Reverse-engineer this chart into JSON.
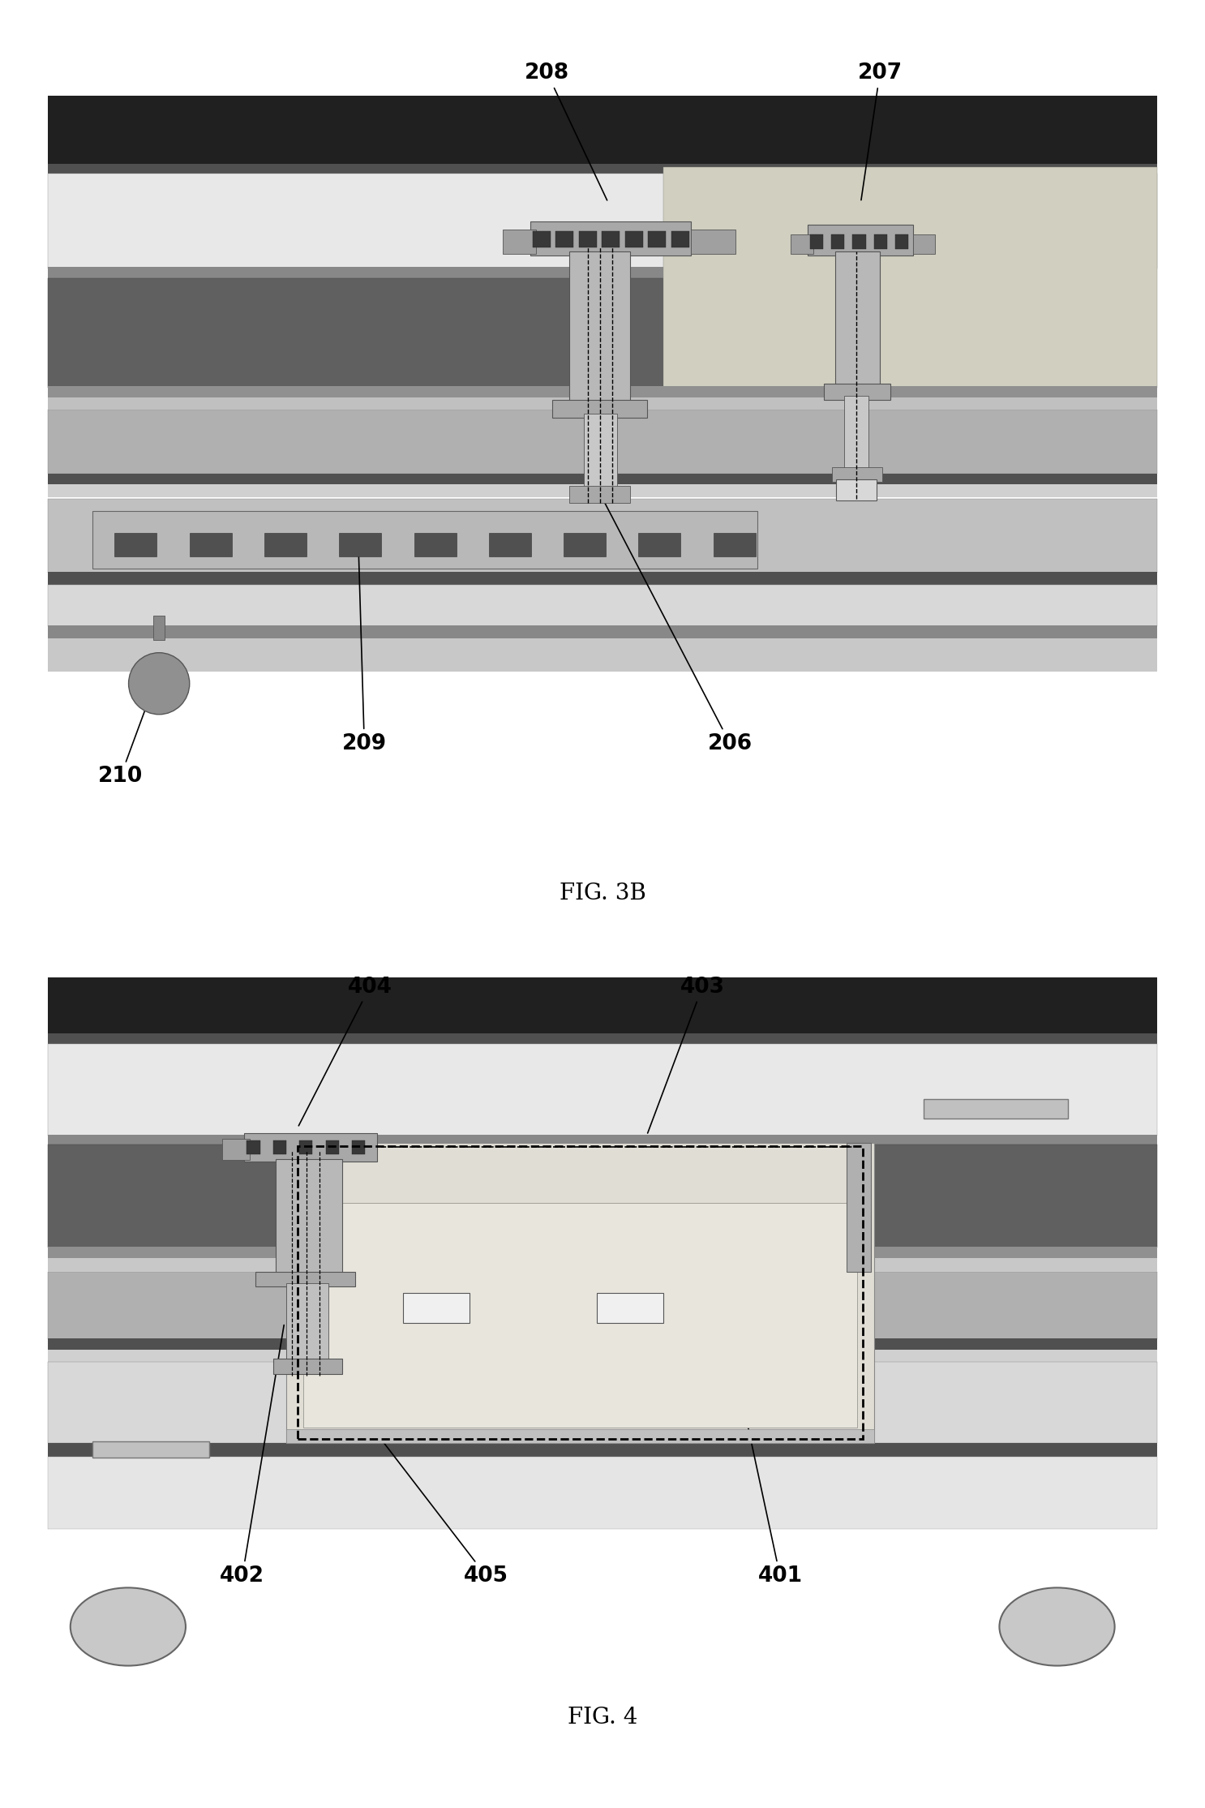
{
  "fig_width": 14.86,
  "fig_height": 22.29,
  "background_color": "#ffffff",
  "colors": {
    "very_dark": "#202020",
    "dark_gray": "#404040",
    "mid_dark": "#606060",
    "mid_gray": "#808080",
    "light_gray": "#b0b0b0",
    "very_light": "#d8d8d8",
    "white": "#ffffff",
    "stipple_bg": "#e8e8e8",
    "right_panel": "#d0cfc0",
    "connector_top": "#a8a8a8",
    "connector_body": "#b8b8b8",
    "pin_dark": "#383838",
    "ball_gray": "#909090",
    "fig4_cavity": "#e0ddd5",
    "fig4_light": "#d0cdc5"
  }
}
